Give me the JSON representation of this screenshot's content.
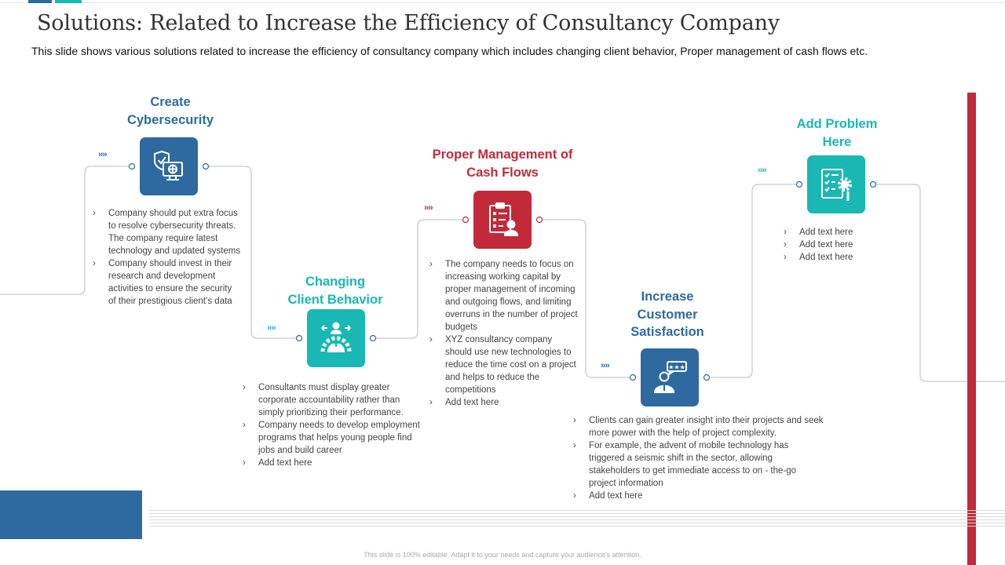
{
  "slide": {
    "title": "Solutions: Related to Increase the Efficiency of Consultancy Company",
    "subtitle": "This slide shows various solutions related to increase the efficiency of consultancy company which includes changing client behavior, Proper management of cash flows etc.",
    "footer": "This slide is 100% editable. Adapt it to your needs and capture your audience's attention."
  },
  "colors": {
    "blue": "#2e6aa0",
    "teal": "#19b8b4",
    "red": "#c22a3a"
  },
  "steps": [
    {
      "title_lines": [
        "Create",
        "Cybersecurity"
      ],
      "icon": "shield-monitor-icon",
      "chevrons": "››››",
      "bullets": [
        "Company should put extra focus to resolve cybersecurity threats. The company require latest technology and updated systems",
        "Company should invest in their research and development activities to ensure the security of their prestigious client’s data"
      ]
    },
    {
      "title_lines": [
        "Changing",
        "Client Behavior"
      ],
      "icon": "person-gear-icon",
      "chevrons": "››››",
      "bullets": [
        "Consultants must display greater corporate accountability rather than simply prioritizing their performance.",
        "Company needs to develop employment programs that helps young people find jobs and build career",
        "Add text here"
      ]
    },
    {
      "title_lines": [
        "Proper Management of",
        "Cash Flows"
      ],
      "icon": "clipboard-person-icon",
      "chevrons": "››››",
      "bullets": [
        "The company needs to focus on increasing working capital by proper management of incoming and outgoing flows, and limiting overruns in the number of project budgets",
        "XYZ consultancy company should use new technologies to reduce the time cost on a project and helps to reduce the competitions",
        "Add text here"
      ]
    },
    {
      "title_lines": [
        "Increase",
        "Customer",
        "Satisfaction"
      ],
      "icon": "customer-rating-icon",
      "chevrons": "››››",
      "bullets": [
        "Clients can gain greater insight into their projects and seek more power with the help of project complexity.",
        "For example, the advent of mobile technology has triggered a seismic shift in the sector, allowing stakeholders to get immediate access to on - the-go project information",
        "Add text here"
      ]
    },
    {
      "title_lines": [
        "Add Problem",
        "Here"
      ],
      "icon": "checklist-gear-icon",
      "chevrons": "››››",
      "bullets": [
        "Add text here",
        "Add text here",
        "Add text here"
      ]
    }
  ]
}
